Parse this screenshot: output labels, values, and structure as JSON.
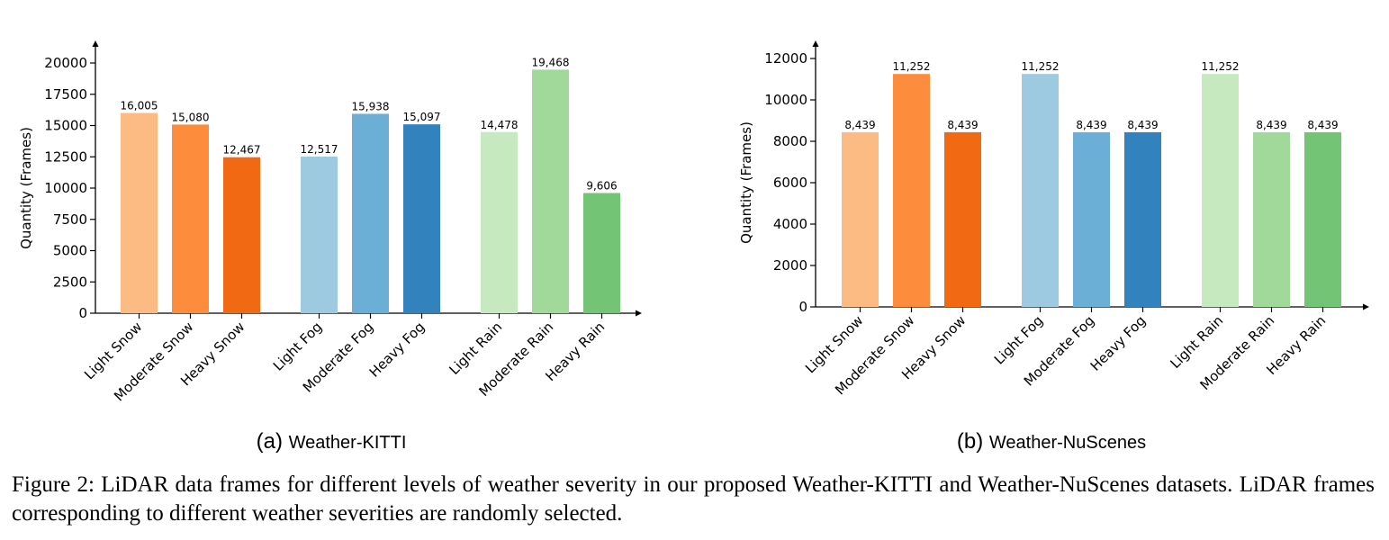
{
  "chart_data": [
    {
      "type": "bar",
      "subcaption_tag": "(a)",
      "subcaption_title": "Weather-KITTI",
      "ylabel": "Quantity (Frames)",
      "ylim": [
        0,
        20000
      ],
      "yticks": [
        0,
        2500,
        5000,
        7500,
        10000,
        12500,
        15000,
        17500,
        20000
      ],
      "ytick_labels": [
        "0",
        "2500",
        "5000",
        "7500",
        "10000",
        "12500",
        "15000",
        "17500",
        "20000"
      ],
      "categories": [
        "Light Snow",
        "Moderate Snow",
        "Heavy Snow",
        "Light Fog",
        "Moderate Fog",
        "Heavy Fog",
        "Light Rain",
        "Moderate Rain",
        "Heavy Rain"
      ],
      "values": [
        16005,
        15080,
        12467,
        12517,
        15938,
        15097,
        14478,
        19468,
        9606
      ],
      "value_labels": [
        "16,005",
        "15,080",
        "12,467",
        "12,517",
        "15,938",
        "15,097",
        "14,478",
        "19,468",
        "9,606"
      ],
      "colors": [
        "#fdbb84",
        "#fd8d3c",
        "#f16913",
        "#9ecae1",
        "#6baed6",
        "#3182bd",
        "#c7e9c0",
        "#a1d99b",
        "#74c476"
      ],
      "grid": false
    },
    {
      "type": "bar",
      "subcaption_tag": "(b)",
      "subcaption_title": "Weather-NuScenes",
      "ylabel": "Quantity (Frames)",
      "ylim": [
        0,
        12000
      ],
      "yticks": [
        0,
        2000,
        4000,
        6000,
        8000,
        10000,
        12000
      ],
      "ytick_labels": [
        "0",
        "2000",
        "4000",
        "6000",
        "8000",
        "10000",
        "12000"
      ],
      "categories": [
        "Light Snow",
        "Moderate Snow",
        "Heavy Snow",
        "Light Fog",
        "Moderate Fog",
        "Heavy Fog",
        "Light Rain",
        "Moderate Rain",
        "Heavy Rain"
      ],
      "values": [
        8439,
        11252,
        8439,
        11252,
        8439,
        8439,
        11252,
        8439,
        8439
      ],
      "value_labels": [
        "8,439",
        "11,252",
        "8,439",
        "11,252",
        "8,439",
        "8,439",
        "11,252",
        "8,439",
        "8,439"
      ],
      "colors": [
        "#fdbb84",
        "#fd8d3c",
        "#f16913",
        "#9ecae1",
        "#6baed6",
        "#3182bd",
        "#c7e9c0",
        "#a1d99b",
        "#74c476"
      ],
      "grid": false
    }
  ],
  "caption": "Figure 2: LiDAR data frames for different levels of weather severity in our proposed Weather-KITTI and Weather-NuScenes datasets. LiDAR frames corresponding to different weather severities are randomly selected."
}
